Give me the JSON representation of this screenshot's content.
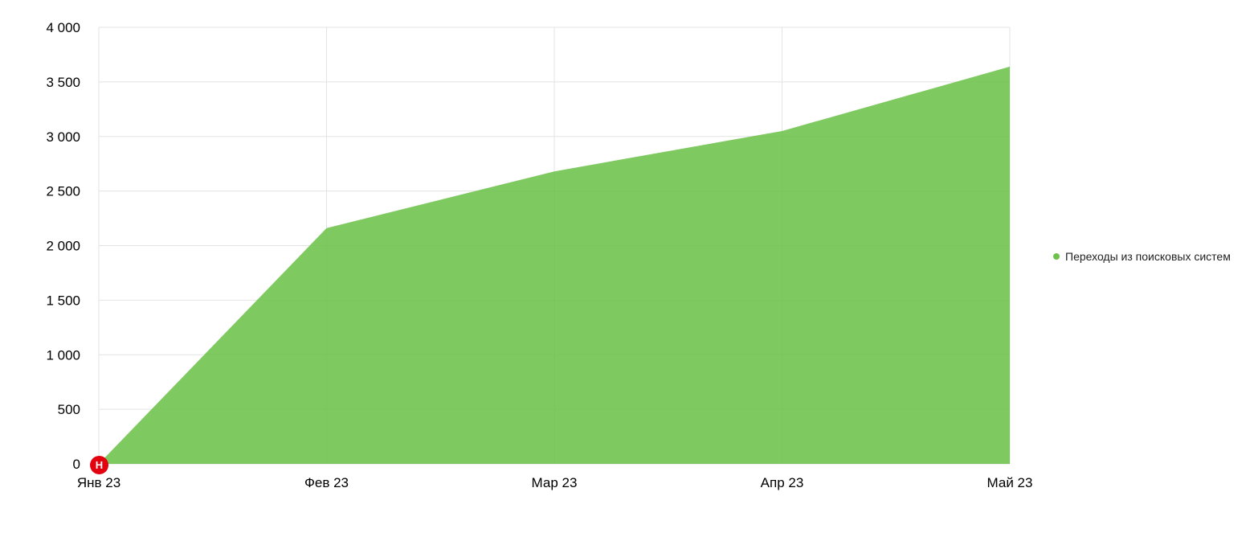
{
  "chart_data": {
    "type": "area",
    "categories": [
      "Янв 23",
      "Фев 23",
      "Мар 23",
      "Апр 23",
      "Май 23"
    ],
    "series": [
      {
        "name": "Переходы из поисковых систем",
        "values": [
          0,
          2160,
          2680,
          3050,
          3640
        ],
        "color": "#6cc24a"
      }
    ],
    "y_ticks": [
      "0",
      "500",
      "1 000",
      "1 500",
      "2 000",
      "2 500",
      "3 000",
      "3 500",
      "4 000"
    ],
    "ylim": [
      0,
      4000
    ],
    "grid": true,
    "legend_position": "right",
    "annotation": {
      "label": "Н",
      "category": "Янв 23",
      "color": "#e3000f"
    }
  }
}
